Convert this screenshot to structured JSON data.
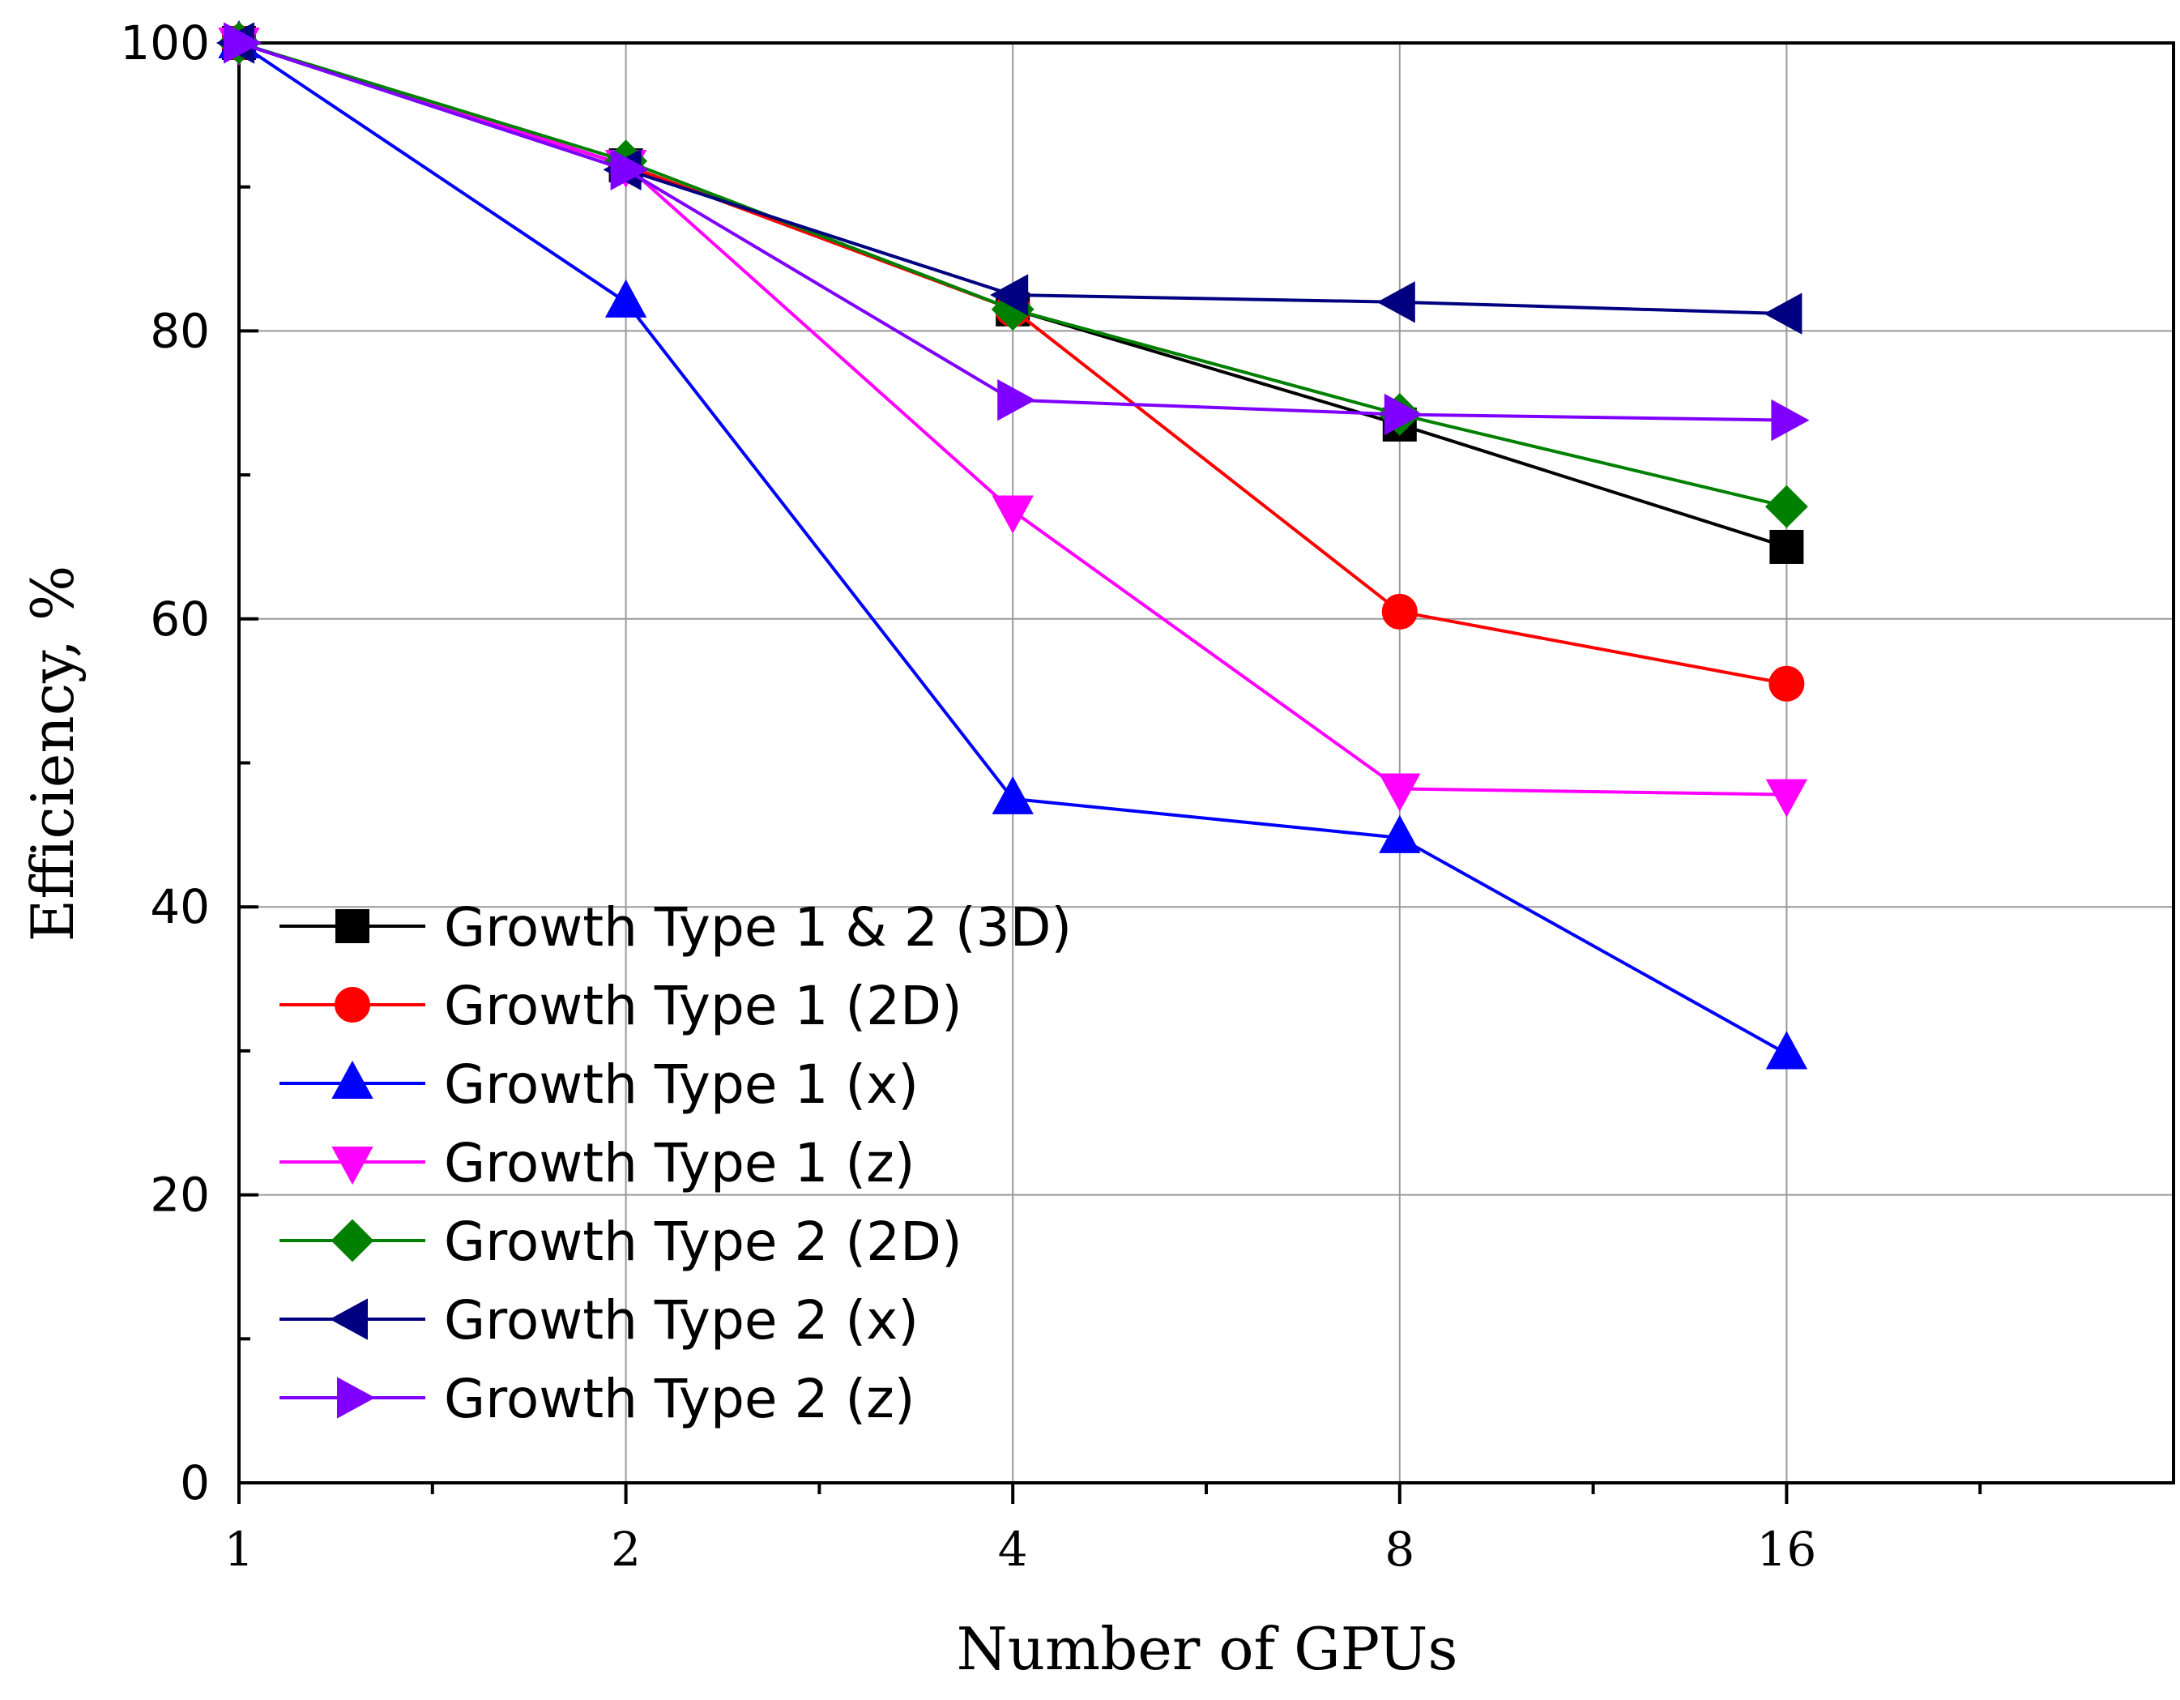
{
  "chart_data": {
    "type": "line",
    "title": "",
    "xlabel": "Number of GPUs",
    "ylabel": "Efficiency, %",
    "x": [
      1,
      2,
      4,
      8,
      16
    ],
    "x_tick_labels": [
      "1",
      "2",
      "4",
      "8",
      "16"
    ],
    "x_scale": "log2",
    "xlim": [
      1,
      32
    ],
    "ylim": [
      0,
      100
    ],
    "y_ticks": [
      0,
      20,
      40,
      60,
      80,
      100
    ],
    "y_tick_labels": [
      "0",
      "20",
      "40",
      "60",
      "80",
      "100"
    ],
    "grid": true,
    "legend_position": "bottom-left",
    "series": [
      {
        "name": "Growth Type 1 & 2 (3D)",
        "color": "#000000",
        "marker": "square",
        "values": [
          100,
          91.5,
          81.5,
          73.5,
          65
        ]
      },
      {
        "name": "Growth Type 1 (2D)",
        "color": "#ff0000",
        "marker": "circle",
        "values": [
          100,
          91.5,
          81.5,
          60.5,
          55.5
        ]
      },
      {
        "name": "Growth Type 1 (x)",
        "color": "#0000ff",
        "marker": "triangle-up",
        "values": [
          100,
          82,
          47.5,
          44.8,
          29.8
        ]
      },
      {
        "name": "Growth Type 1 (z)",
        "color": "#ff00ff",
        "marker": "triangle-down",
        "values": [
          100,
          91.5,
          67.5,
          48.2,
          47.8
        ]
      },
      {
        "name": "Growth Type 2 (2D)",
        "color": "#008000",
        "marker": "diamond",
        "values": [
          100,
          91.8,
          81.5,
          74.2,
          67.8
        ]
      },
      {
        "name": "Growth Type 2 (x)",
        "color": "#000080",
        "marker": "triangle-left",
        "values": [
          100,
          91.2,
          82.5,
          82.0,
          81.2
        ]
      },
      {
        "name": "Growth Type 2 (z)",
        "color": "#8000ff",
        "marker": "triangle-right",
        "values": [
          100,
          91.2,
          75.2,
          74.2,
          73.8
        ]
      }
    ]
  }
}
